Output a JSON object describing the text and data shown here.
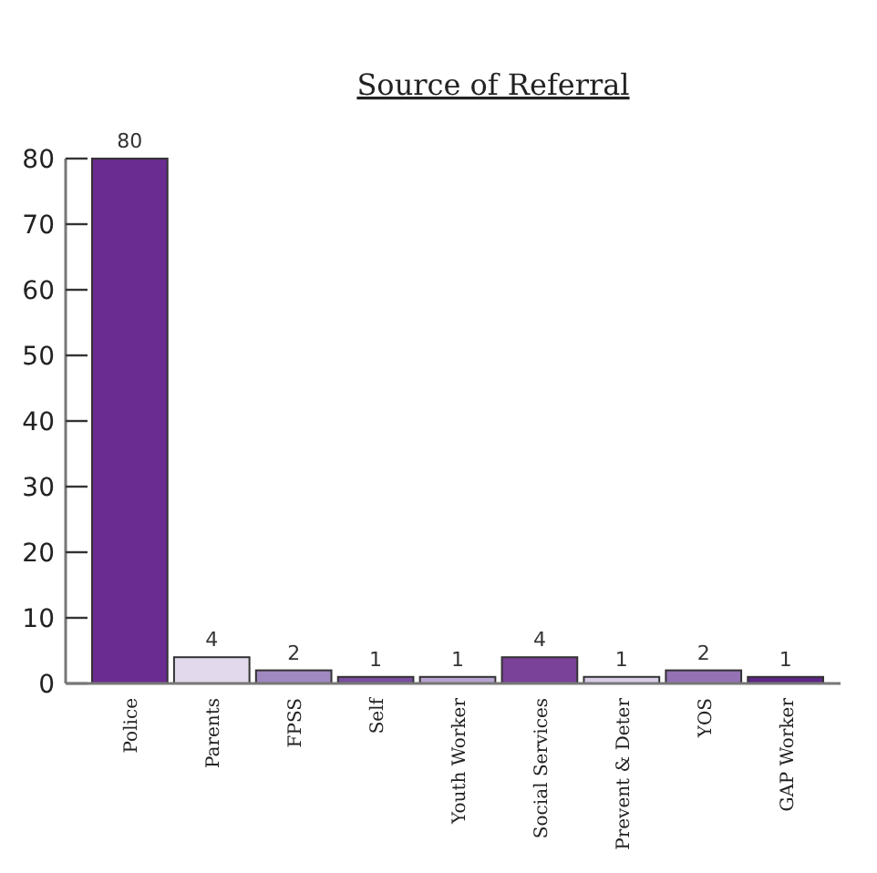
{
  "chart_data": {
    "type": "bar",
    "title": "Source of Referral",
    "categories": [
      "Police",
      "Parents",
      "FPSS",
      "Self",
      "Youth Worker",
      "Social Services",
      "Prevent & Deter",
      "YOS",
      "GAP Worker"
    ],
    "values": [
      80,
      4,
      2,
      1,
      1,
      4,
      1,
      2,
      1
    ],
    "colors": [
      "#6a2c91",
      "#e2d9ec",
      "#a088c0",
      "#7a4e9e",
      "#b8a4d0",
      "#7a4299",
      "#d8cce6",
      "#9472b4",
      "#5e2686"
    ],
    "ylim": [
      0,
      80
    ],
    "yticks": [
      0,
      10,
      20,
      30,
      40,
      50,
      60,
      70,
      80
    ],
    "data_labels": true,
    "grid": false
  }
}
